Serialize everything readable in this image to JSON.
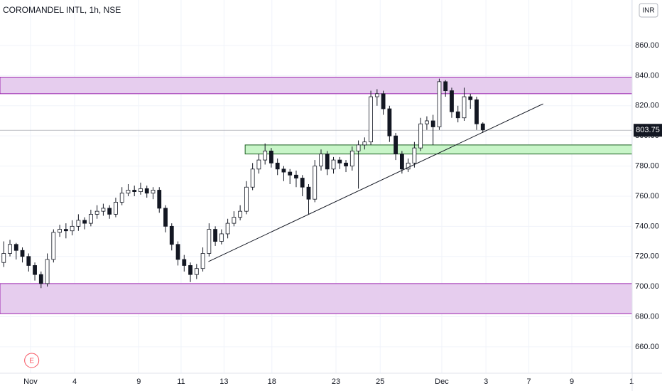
{
  "chart_data": {
    "type": "candlestick",
    "title": "COROMANDEL INTL, 1h, NSE",
    "currency": "INR",
    "open": [
      716,
      722,
      728,
      724,
      720,
      714,
      708,
      702,
      718,
      736,
      738,
      737,
      740,
      744,
      742,
      748,
      750,
      752,
      748,
      756,
      762,
      764,
      763,
      765,
      762,
      764,
      752,
      740,
      728,
      718,
      714,
      708,
      712,
      722,
      738,
      730,
      735,
      742,
      746,
      750,
      766,
      778,
      784,
      790,
      782,
      778,
      776,
      774,
      772,
      766,
      758,
      780,
      788,
      778,
      784,
      782,
      780,
      790,
      794,
      796,
      826,
      828,
      818,
      800,
      788,
      778,
      782,
      792,
      808,
      810,
      806,
      836,
      830,
      816,
      812,
      826,
      824,
      808
    ],
    "high": [
      730,
      731,
      729,
      726,
      722,
      716,
      710,
      722,
      738,
      741,
      742,
      744,
      748,
      746,
      751,
      754,
      755,
      754,
      759,
      766,
      768,
      767,
      769,
      767,
      766,
      766,
      754,
      742,
      730,
      721,
      716,
      715,
      726,
      742,
      740,
      738,
      745,
      750,
      754,
      770,
      782,
      788,
      795,
      792,
      785,
      780,
      778,
      777,
      774,
      768,
      784,
      791,
      790,
      786,
      786,
      784,
      793,
      797,
      799,
      830,
      831,
      830,
      820,
      802,
      790,
      785,
      796,
      812,
      813,
      814,
      838,
      837,
      832,
      820,
      832,
      828,
      826,
      809
    ],
    "low": [
      713,
      720,
      718,
      716,
      710,
      704,
      699,
      700,
      716,
      733,
      732,
      734,
      737,
      738,
      740,
      745,
      747,
      745,
      746,
      754,
      760,
      760,
      761,
      759,
      758,
      749,
      736,
      724,
      714,
      710,
      703,
      705,
      710,
      720,
      727,
      728,
      732,
      740,
      744,
      748,
      764,
      775,
      781,
      779,
      774,
      770,
      768,
      766,
      760,
      748,
      756,
      777,
      774,
      775,
      778,
      776,
      777,
      765,
      791,
      794,
      820,
      814,
      796,
      784,
      775,
      776,
      779,
      790,
      804,
      794,
      804,
      826,
      812,
      809,
      810,
      818,
      804,
      802
    ],
    "close": [
      722,
      728,
      724,
      720,
      714,
      708,
      702,
      718,
      736,
      738,
      737,
      740,
      744,
      742,
      748,
      750,
      752,
      748,
      756,
      762,
      764,
      763,
      765,
      762,
      764,
      752,
      740,
      728,
      718,
      714,
      708,
      712,
      722,
      738,
      730,
      735,
      742,
      746,
      750,
      766,
      778,
      784,
      790,
      782,
      778,
      776,
      774,
      772,
      766,
      758,
      780,
      788,
      778,
      784,
      782,
      780,
      790,
      794,
      796,
      826,
      828,
      818,
      800,
      788,
      778,
      782,
      792,
      808,
      810,
      806,
      836,
      830,
      816,
      812,
      826,
      824,
      808,
      804
    ],
    "up_color": "#ffffff",
    "down_color": "#131722",
    "ylim": [
      642.5,
      890.2
    ],
    "yticks": [
      {
        "value": 660,
        "label": "660.00"
      },
      {
        "value": 680,
        "label": "680.00"
      },
      {
        "value": 700,
        "label": "700.00"
      },
      {
        "value": 720,
        "label": "720.00"
      },
      {
        "value": 740,
        "label": "740.00"
      },
      {
        "value": 760,
        "label": "760.00"
      },
      {
        "value": 780,
        "label": "780.00"
      },
      {
        "value": 800,
        "label": "800.00"
      },
      {
        "value": 820,
        "label": "820.00"
      },
      {
        "value": 840,
        "label": "840.00"
      },
      {
        "value": 860,
        "label": "860.00"
      }
    ],
    "xlim": [
      -0.6,
      101
    ],
    "xticks": [
      {
        "value": 4.3,
        "label": "Nov"
      },
      {
        "value": 11.4,
        "label": "4"
      },
      {
        "value": 21.7,
        "label": "9"
      },
      {
        "value": 28.5,
        "label": "11"
      },
      {
        "value": 35.4,
        "label": "13"
      },
      {
        "value": 43.1,
        "label": "18"
      },
      {
        "value": 53.4,
        "label": "23"
      },
      {
        "value": 60.5,
        "label": "25"
      },
      {
        "value": 70.4,
        "label": "Dec"
      },
      {
        "value": 77.5,
        "label": "3"
      },
      {
        "value": 84.4,
        "label": "7"
      },
      {
        "value": 91.3,
        "label": "9"
      },
      {
        "value": 100.9,
        "label": "1"
      }
    ],
    "last_price": 803.75,
    "zones": [
      {
        "low": 828,
        "high": 839,
        "color": "#e6cdee",
        "border": "#9c27b0"
      },
      {
        "low": 788,
        "high": 794,
        "start": 38.8,
        "color": "#c8f5c8",
        "border": "#1b5e20"
      },
      {
        "low": 682,
        "high": 702,
        "color": "#e6cdee",
        "border": "#9c27b0"
      }
    ],
    "trendline": {
      "x": [
        32.9,
        86.7
      ],
      "y": [
        716.6,
        821.3
      ]
    },
    "events": [
      {
        "label": "E",
        "x": 4.5
      }
    ]
  }
}
